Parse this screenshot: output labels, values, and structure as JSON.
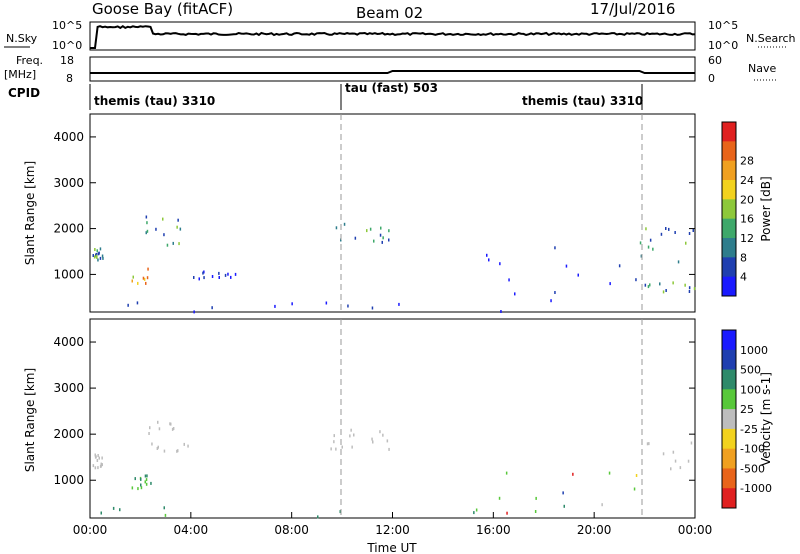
{
  "header": {
    "station": "Goose Bay (fitACF)",
    "beam": "Beam 02",
    "date": "17/Jul/2016"
  },
  "noise_panel": {
    "left_label": "N.Sky",
    "left_ticks": [
      "10^5",
      "10^0"
    ],
    "right_ticks": [
      "10^5",
      "10^0"
    ],
    "right_label": "N.Search"
  },
  "freq_panel": {
    "left_label_1": "Freq.",
    "left_label_2": "[MHz]",
    "left_ticks": [
      "18",
      "8"
    ],
    "right_ticks": [
      "60",
      "0"
    ],
    "right_label": "Nave"
  },
  "cpid_panel": {
    "label": "CPID",
    "segments": [
      {
        "name": "themis (tau) 3310"
      },
      {
        "name": "tau (fast) 503"
      },
      {
        "name": "themis (tau) 3310"
      }
    ]
  },
  "chart_data": [
    {
      "type": "heatmap",
      "title": "",
      "xlabel": "",
      "ylabel": "Slant Range [km]",
      "xlim": [
        0,
        24
      ],
      "ylim": [
        180,
        4500
      ],
      "yticks": [
        "1000",
        "2000",
        "3000",
        "4000"
      ],
      "colorbar": {
        "label": "Power [dB]",
        "ticks": [
          "4",
          "8",
          "12",
          "16",
          "20",
          "24",
          "28"
        ],
        "colors": [
          "#1a1aff",
          "#1f3fb0",
          "#2e7d8c",
          "#3ea86a",
          "#8dc83a",
          "#f2d21e",
          "#f0a020",
          "#e8641a",
          "#e02020"
        ]
      },
      "regions": [
        {
          "t0": 0.1,
          "t1": 0.5,
          "r0": 1300,
          "r1": 1600,
          "level": "mid"
        },
        {
          "t0": 1.6,
          "t1": 2.4,
          "r0": 800,
          "r1": 1150,
          "level": "high"
        },
        {
          "t0": 2.2,
          "t1": 3.9,
          "r0": 1650,
          "r1": 2300,
          "level": "mid"
        },
        {
          "t0": 3.8,
          "t1": 6.0,
          "r0": 900,
          "r1": 1100,
          "level": "low"
        },
        {
          "t0": 0.0,
          "t1": 15.5,
          "r0": 200,
          "r1": 450,
          "level": "low"
        },
        {
          "t0": 9.5,
          "t1": 12.0,
          "r0": 1700,
          "r1": 2150,
          "level": "mid"
        },
        {
          "t0": 15.5,
          "t1": 21.7,
          "r0": 200,
          "r1": 1700,
          "level": "low"
        },
        {
          "t0": 21.8,
          "t1": 24.0,
          "r0": 1200,
          "r1": 2100,
          "level": "mid"
        },
        {
          "t0": 21.8,
          "t1": 24.0,
          "r0": 650,
          "r1": 850,
          "level": "mid"
        }
      ]
    },
    {
      "type": "heatmap",
      "title": "",
      "xlabel": "Time UT",
      "ylabel": "Slant Range [km]",
      "xlim": [
        0,
        24
      ],
      "ylim": [
        180,
        4500
      ],
      "xticks": [
        "00:00",
        "04:00",
        "08:00",
        "12:00",
        "16:00",
        "20:00",
        "00:00"
      ],
      "yticks": [
        "1000",
        "2000",
        "3000",
        "4000"
      ],
      "colorbar": {
        "label": "Velocity [m s-1]",
        "ticks": [
          "1000",
          "500",
          "100",
          "25",
          "-25",
          "-100",
          "-500",
          "-1000"
        ],
        "colors": [
          "#1a1aff",
          "#1f3fb0",
          "#2e8a6a",
          "#58c83a",
          "#bdbdbd",
          "#f2d21e",
          "#f0a020",
          "#e8641a",
          "#e02020"
        ]
      },
      "regions": [
        {
          "t0": 0.1,
          "t1": 0.5,
          "r0": 1300,
          "r1": 1600,
          "level": "gray"
        },
        {
          "t0": 1.6,
          "t1": 2.4,
          "r0": 800,
          "r1": 1150,
          "level": "green"
        },
        {
          "t0": 2.2,
          "t1": 3.9,
          "r0": 1650,
          "r1": 2300,
          "level": "gray"
        },
        {
          "t0": 0.0,
          "t1": 15.5,
          "r0": 200,
          "r1": 450,
          "level": "green"
        },
        {
          "t0": 9.5,
          "t1": 12.0,
          "r0": 1700,
          "r1": 2150,
          "level": "gray"
        },
        {
          "t0": 15.5,
          "t1": 21.7,
          "r0": 200,
          "r1": 1200,
          "level": "mixed"
        },
        {
          "t0": 21.8,
          "t1": 24.0,
          "r0": 1200,
          "r1": 2100,
          "level": "gray"
        }
      ]
    }
  ]
}
